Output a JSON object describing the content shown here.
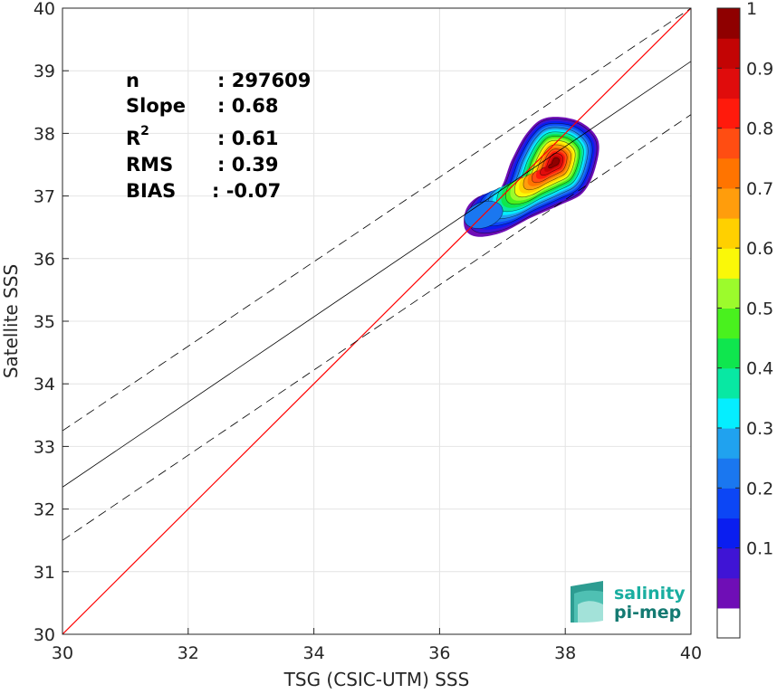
{
  "chart_data": {
    "type": "scatter",
    "subtype": "density-contour",
    "xlabel": "TSG (CSIC-UTM) SSS",
    "ylabel": "Satellite SSS",
    "xlim": [
      30,
      40
    ],
    "ylim": [
      30,
      40
    ],
    "xticks": [
      30,
      32,
      34,
      36,
      38,
      40
    ],
    "yticks": [
      30,
      31,
      32,
      33,
      34,
      35,
      36,
      37,
      38,
      39,
      40
    ],
    "grid": true,
    "stats": [
      {
        "label": "n",
        "sep": ": ",
        "value": "297609"
      },
      {
        "label": "Slope",
        "sep": ": ",
        "value": "0.68"
      },
      {
        "label": "R",
        "sup": "2",
        "sep": ": ",
        "value": "0.61"
      },
      {
        "label": "RMS",
        "sep": ": ",
        "value": "0.39"
      },
      {
        "label": "BIAS",
        "sep": ": ",
        "value": "-0.07"
      }
    ],
    "identity_line": {
      "color": "#ff0000",
      "slope": 1,
      "intercept": 0
    },
    "fit_line": {
      "slope": 0.68,
      "y_at_30": 32.35,
      "y_at_40": 39.15,
      "color": "#000000"
    },
    "fit_bounds": [
      {
        "y_at_30": 33.25,
        "y_at_40": 40.0,
        "style": "dashed"
      },
      {
        "y_at_30": 31.5,
        "y_at_40": 38.3,
        "style": "dashed"
      }
    ],
    "density": {
      "peak": {
        "x": 37.85,
        "y": 37.55
      },
      "secondary_peak": {
        "x": 36.7,
        "y": 36.7
      },
      "x_extent": [
        36.35,
        38.55
      ],
      "y_extent": [
        36.35,
        38.3
      ]
    },
    "colorbar": {
      "min": 0,
      "max": 1,
      "ticks": [
        0.1,
        0.2,
        0.3,
        0.4,
        0.5,
        0.6,
        0.7,
        0.8,
        0.9,
        1
      ],
      "tick_labels": [
        "0.1",
        "0.2",
        "0.3",
        "0.4",
        "0.5",
        "0.6",
        "0.7",
        "0.8",
        "0.9",
        "1"
      ],
      "colors": [
        "#ffffff",
        "#6f0eb6",
        "#3f14d5",
        "#0a1ef0",
        "#0c46f5",
        "#1a77f0",
        "#20a2ef",
        "#05eeff",
        "#08e8a3",
        "#0fe64e",
        "#49f11e",
        "#9cfb2c",
        "#faf808",
        "#ffd000",
        "#ff9d0c",
        "#ff7400",
        "#ff4d12",
        "#ff1a0c",
        "#e00c0c",
        "#c30404",
        "#8f0000"
      ]
    }
  },
  "logo": {
    "line1": "salinity",
    "line2": "pi-mep",
    "color": "#1aaea0"
  }
}
